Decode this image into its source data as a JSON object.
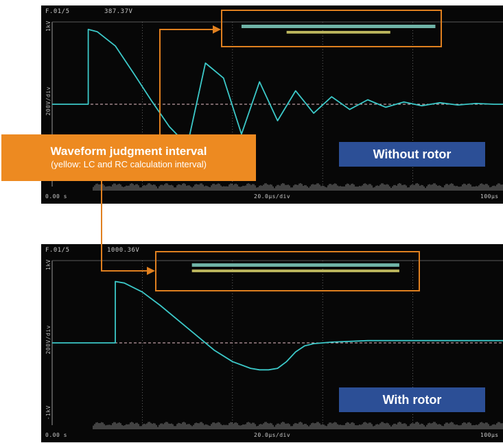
{
  "colors": {
    "screen_bg": "#070707",
    "waveform": "#3cc9c9",
    "judgment_bar": "#6fb3a6",
    "calc_bar": "#b9b35c",
    "callout": "#ed8a21",
    "badge": "#2c4f96",
    "grid": "#7a7a7a"
  },
  "callout": {
    "title": "Waveform judgment interval",
    "subtitle": "(yellow: LC and RC calculation interval)"
  },
  "chart_data": [
    {
      "type": "line",
      "badge": "Without rotor",
      "header_left": "F.01/5",
      "header_value": "387.37V",
      "side_top": "1kV",
      "side_mid": "200V/div",
      "side_bottom": "",
      "footer_left": "0.00 s",
      "footer_mid": "20.0μs/div",
      "footer_right": "100μs",
      "series": [
        {
          "x": [
            0,
            8,
            8,
            10,
            14,
            18,
            22,
            26,
            30,
            34,
            38,
            42,
            46,
            50,
            54,
            58,
            62,
            66,
            70,
            74,
            78,
            82,
            86,
            90,
            94,
            98,
            100
          ],
          "y": [
            0,
            0,
            1.0,
            0.97,
            0.78,
            0.42,
            0.05,
            -0.3,
            -0.55,
            0.55,
            0.35,
            -0.4,
            0.3,
            -0.22,
            0.18,
            -0.12,
            0.1,
            -0.07,
            0.06,
            -0.04,
            0.03,
            -0.02,
            0.02,
            -0.01,
            0.01,
            0,
            0
          ]
        }
      ],
      "judgment_interval_x": [
        42,
        85
      ],
      "calc_interval_x": [
        52,
        75
      ],
      "xlim": [
        0,
        100
      ],
      "ylim": [
        -1.1,
        1.1
      ],
      "grid": true
    },
    {
      "type": "line",
      "badge": "With rotor",
      "header_left": "F.01/5",
      "header_value": "1000.36V",
      "side_top": "1kV",
      "side_mid": "200V/div",
      "side_bottom": "-1kV",
      "footer_left": "0.00 s",
      "footer_mid": "20.0μs/div",
      "footer_right": "100μs",
      "series": [
        {
          "x": [
            0,
            14,
            14,
            16,
            20,
            24,
            28,
            32,
            36,
            40,
            44,
            46,
            48,
            50,
            52,
            54,
            56,
            58,
            60,
            62,
            66,
            70,
            80,
            90,
            100
          ],
          "y": [
            0,
            0,
            0.82,
            0.8,
            0.68,
            0.5,
            0.3,
            0.1,
            -0.1,
            -0.25,
            -0.34,
            -0.36,
            -0.36,
            -0.34,
            -0.25,
            -0.12,
            -0.04,
            -0.01,
            0,
            0.01,
            0.02,
            0.03,
            0.03,
            0.03,
            0.03
          ]
        }
      ],
      "judgment_interval_x": [
        31,
        77
      ],
      "calc_interval_x": [
        31,
        77
      ],
      "xlim": [
        0,
        100
      ],
      "ylim": [
        -1.1,
        1.1
      ],
      "grid": true
    }
  ]
}
